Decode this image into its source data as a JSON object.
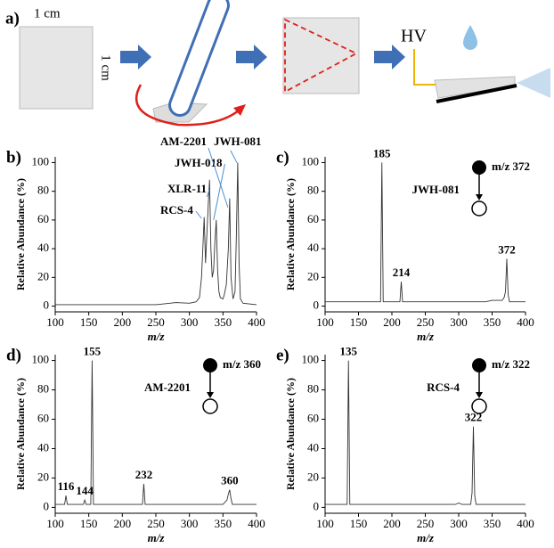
{
  "schematic": {
    "label": "a)",
    "width_label": "1 cm",
    "height_label": "1 cm",
    "voltage_label": "HV"
  },
  "chart_data": [
    {
      "type": "line",
      "panel_label": "b)",
      "ylabel": "Relative Abundance (%)",
      "xlabel": "m/z",
      "x": [
        100,
        150,
        200,
        250,
        260,
        280,
        300,
        310,
        315,
        318,
        320,
        322,
        324,
        326,
        328,
        330,
        332,
        334,
        336,
        338,
        340,
        342,
        344,
        346,
        350,
        352,
        355,
        358,
        360,
        362,
        365,
        368,
        370,
        372,
        374,
        376,
        380,
        400
      ],
      "values": [
        1,
        1,
        1,
        1,
        1.5,
        2.5,
        2,
        3,
        6,
        20,
        40,
        62,
        30,
        50,
        70,
        88,
        40,
        20,
        25,
        45,
        60,
        25,
        10,
        6,
        5,
        8,
        15,
        40,
        75,
        20,
        5,
        10,
        50,
        100,
        30,
        5,
        2,
        1
      ],
      "color": "#333333",
      "xlim": [
        100,
        400
      ],
      "ylim": [
        -4,
        104
      ],
      "xticks": [
        100,
        150,
        200,
        250,
        300,
        350,
        400
      ],
      "yticks": [
        0,
        20,
        40,
        60,
        80,
        100
      ],
      "annotations": [
        {
          "text": "RCS-4",
          "x": 322
        },
        {
          "text": "XLR-11",
          "x": 330
        },
        {
          "text": "JWH-018",
          "x": 340
        },
        {
          "text": "AM-2201",
          "x": 360
        },
        {
          "text": "JWH-081",
          "x": 372
        }
      ]
    },
    {
      "type": "line",
      "panel_label": "c)",
      "ylabel": "Relative Abundance (%)",
      "xlabel": "m/z",
      "precursor_label": "m/z 372",
      "compound": "JWH-081",
      "x": [
        100,
        183,
        185,
        187,
        212,
        214,
        216,
        340,
        350,
        365,
        368,
        370,
        372,
        374,
        376,
        400
      ],
      "values": [
        3,
        3,
        100,
        3,
        3,
        17,
        3,
        3,
        4,
        4,
        6,
        10,
        33,
        8,
        3,
        3
      ],
      "color": "#333333",
      "xlim": [
        100,
        400
      ],
      "ylim": [
        -4,
        104
      ],
      "xticks": [
        100,
        150,
        200,
        250,
        300,
        350,
        400
      ],
      "yticks": [
        0,
        20,
        40,
        60,
        80,
        100
      ],
      "peak_labels": [
        185,
        214,
        372
      ]
    },
    {
      "type": "line",
      "panel_label": "d)",
      "ylabel": "Relative Abundance (%)",
      "xlabel": "m/z",
      "precursor_label": "m/z 360",
      "compound": "AM-2201",
      "x": [
        100,
        114,
        116,
        118,
        142,
        144,
        146,
        153,
        155,
        157,
        230,
        232,
        234,
        350,
        356,
        358,
        360,
        362,
        364,
        400
      ],
      "values": [
        2,
        2,
        8,
        2,
        2,
        5,
        2,
        2,
        100,
        2,
        2,
        16,
        2,
        2,
        5,
        9,
        12,
        6,
        2,
        2
      ],
      "color": "#333333",
      "xlim": [
        100,
        400
      ],
      "ylim": [
        -4,
        104
      ],
      "xticks": [
        100,
        150,
        200,
        250,
        300,
        350,
        400
      ],
      "yticks": [
        0,
        20,
        40,
        60,
        80,
        100
      ],
      "peak_labels": [
        116,
        144,
        155,
        232,
        360
      ]
    },
    {
      "type": "line",
      "panel_label": "e)",
      "ylabel": "Relative Abundance (%)",
      "xlabel": "m/z",
      "precursor_label": "m/z 322",
      "compound": "RCS-4",
      "x": [
        100,
        133,
        135,
        137,
        295,
        300,
        305,
        318,
        320,
        322,
        324,
        326,
        400
      ],
      "values": [
        2,
        2,
        100,
        2,
        2,
        3,
        2,
        2,
        10,
        55,
        8,
        2,
        2
      ],
      "color": "#333333",
      "xlim": [
        100,
        400
      ],
      "ylim": [
        -4,
        104
      ],
      "xticks": [
        100,
        150,
        200,
        250,
        300,
        350,
        400
      ],
      "yticks": [
        0,
        20,
        40,
        60,
        80,
        100
      ],
      "peak_labels": [
        135,
        322
      ]
    }
  ]
}
